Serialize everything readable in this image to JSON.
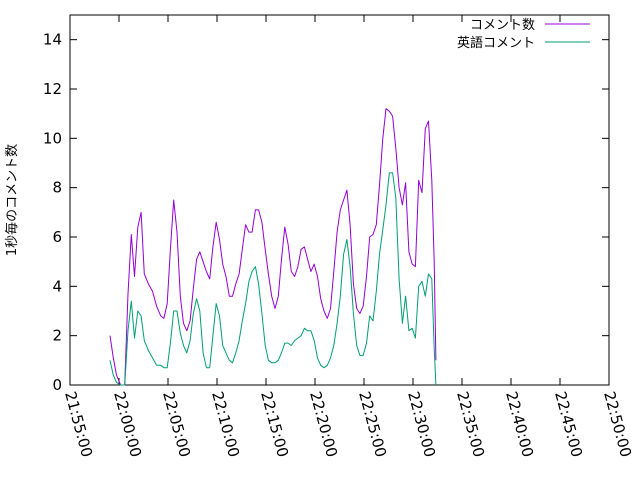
{
  "chart_data": {
    "type": "line",
    "title": "",
    "xlabel": "",
    "ylabel": "1秒毎のコメント数",
    "xlim": [
      "21:55:00",
      "22:50:00"
    ],
    "ylim": [
      0,
      15
    ],
    "x_tick_labels": [
      "21:55:00",
      "22:00:00",
      "22:05:00",
      "22:10:00",
      "22:15:00",
      "22:20:00",
      "22:25:00",
      "22:30:00",
      "22:35:00",
      "22:40:00",
      "22:45:00",
      "22:50:00"
    ],
    "y_tick_labels": [
      "0",
      "2",
      "4",
      "6",
      "8",
      "10",
      "12",
      "14"
    ],
    "y_ticks": [
      0,
      2,
      4,
      6,
      8,
      10,
      12,
      14
    ],
    "grid": false,
    "legend_position": "top-right",
    "series": [
      {
        "name": "コメント数",
        "color": "#9400d3",
        "points": [
          [
            "21:59:05",
            2.0
          ],
          [
            "21:59:25",
            1.1
          ],
          [
            "21:59:45",
            0.4
          ],
          [
            "22:00:10",
            0.0
          ],
          [
            "22:00:35",
            0.0
          ],
          [
            "22:00:55",
            3.7
          ],
          [
            "22:01:15",
            6.1
          ],
          [
            "22:01:35",
            4.4
          ],
          [
            "22:01:55",
            6.4
          ],
          [
            "22:02:15",
            7.0
          ],
          [
            "22:02:35",
            4.5
          ],
          [
            "22:03:00",
            4.1
          ],
          [
            "22:03:25",
            3.8
          ],
          [
            "22:03:50",
            3.2
          ],
          [
            "22:04:15",
            2.8
          ],
          [
            "22:04:35",
            2.7
          ],
          [
            "22:04:55",
            3.3
          ],
          [
            "22:05:15",
            5.5
          ],
          [
            "22:05:35",
            7.5
          ],
          [
            "22:05:55",
            6.2
          ],
          [
            "22:06:15",
            3.6
          ],
          [
            "22:06:35",
            2.5
          ],
          [
            "22:06:55",
            2.2
          ],
          [
            "22:07:15",
            2.6
          ],
          [
            "22:07:35",
            3.9
          ],
          [
            "22:07:55",
            5.1
          ],
          [
            "22:08:15",
            5.4
          ],
          [
            "22:08:35",
            5.0
          ],
          [
            "22:08:55",
            4.6
          ],
          [
            "22:09:15",
            4.3
          ],
          [
            "22:09:35",
            5.6
          ],
          [
            "22:09:55",
            6.6
          ],
          [
            "22:10:15",
            5.9
          ],
          [
            "22:10:35",
            4.9
          ],
          [
            "22:10:55",
            4.4
          ],
          [
            "22:11:15",
            3.6
          ],
          [
            "22:11:35",
            3.6
          ],
          [
            "22:11:55",
            4.1
          ],
          [
            "22:12:15",
            4.5
          ],
          [
            "22:12:35",
            5.5
          ],
          [
            "22:12:55",
            6.5
          ],
          [
            "22:13:15",
            6.2
          ],
          [
            "22:13:35",
            6.2
          ],
          [
            "22:13:55",
            7.1
          ],
          [
            "22:14:15",
            7.1
          ],
          [
            "22:14:35",
            6.6
          ],
          [
            "22:14:55",
            5.5
          ],
          [
            "22:15:15",
            4.5
          ],
          [
            "22:15:35",
            3.6
          ],
          [
            "22:15:55",
            3.1
          ],
          [
            "22:16:15",
            3.6
          ],
          [
            "22:16:35",
            5.1
          ],
          [
            "22:16:55",
            6.4
          ],
          [
            "22:17:15",
            5.7
          ],
          [
            "22:17:35",
            4.6
          ],
          [
            "22:17:55",
            4.4
          ],
          [
            "22:18:15",
            4.8
          ],
          [
            "22:18:35",
            5.5
          ],
          [
            "22:18:55",
            5.6
          ],
          [
            "22:19:15",
            5.1
          ],
          [
            "22:19:35",
            4.6
          ],
          [
            "22:19:55",
            4.9
          ],
          [
            "22:20:15",
            4.4
          ],
          [
            "22:20:35",
            3.5
          ],
          [
            "22:20:55",
            3.0
          ],
          [
            "22:21:15",
            2.7
          ],
          [
            "22:21:35",
            3.1
          ],
          [
            "22:21:55",
            4.6
          ],
          [
            "22:22:15",
            6.2
          ],
          [
            "22:22:35",
            7.1
          ],
          [
            "22:22:55",
            7.5
          ],
          [
            "22:23:15",
            7.9
          ],
          [
            "22:23:35",
            6.5
          ],
          [
            "22:23:55",
            4.1
          ],
          [
            "22:24:15",
            3.1
          ],
          [
            "22:24:35",
            2.9
          ],
          [
            "22:24:55",
            3.2
          ],
          [
            "22:25:15",
            4.4
          ],
          [
            "22:25:35",
            6.0
          ],
          [
            "22:25:55",
            6.1
          ],
          [
            "22:26:15",
            6.5
          ],
          [
            "22:26:35",
            8.1
          ],
          [
            "22:26:55",
            10.0
          ],
          [
            "22:27:15",
            11.2
          ],
          [
            "22:27:35",
            11.1
          ],
          [
            "22:27:55",
            10.9
          ],
          [
            "22:28:15",
            9.6
          ],
          [
            "22:28:35",
            8.0
          ],
          [
            "22:28:55",
            7.3
          ],
          [
            "22:29:15",
            8.2
          ],
          [
            "22:29:35",
            5.4
          ],
          [
            "22:29:55",
            4.9
          ],
          [
            "22:30:15",
            4.8
          ],
          [
            "22:30:35",
            8.3
          ],
          [
            "22:30:55",
            7.8
          ],
          [
            "22:31:15",
            10.4
          ],
          [
            "22:31:35",
            10.7
          ],
          [
            "22:31:55",
            8.3
          ],
          [
            "22:32:10",
            5.0
          ],
          [
            "22:32:20",
            1.0
          ]
        ]
      },
      {
        "name": "英語コメント",
        "color": "#009e73",
        "points": [
          [
            "21:59:05",
            1.0
          ],
          [
            "21:59:25",
            0.4
          ],
          [
            "21:59:45",
            0.1
          ],
          [
            "22:00:10",
            0.0
          ],
          [
            "22:00:35",
            0.0
          ],
          [
            "22:00:55",
            2.2
          ],
          [
            "22:01:15",
            3.4
          ],
          [
            "22:01:35",
            1.9
          ],
          [
            "22:01:55",
            3.0
          ],
          [
            "22:02:15",
            2.8
          ],
          [
            "22:02:35",
            1.8
          ],
          [
            "22:03:00",
            1.4
          ],
          [
            "22:03:25",
            1.1
          ],
          [
            "22:03:50",
            0.8
          ],
          [
            "22:04:15",
            0.8
          ],
          [
            "22:04:35",
            0.7
          ],
          [
            "22:04:55",
            0.7
          ],
          [
            "22:05:15",
            1.7
          ],
          [
            "22:05:35",
            3.0
          ],
          [
            "22:05:55",
            3.0
          ],
          [
            "22:06:15",
            2.1
          ],
          [
            "22:06:35",
            1.6
          ],
          [
            "22:06:55",
            1.3
          ],
          [
            "22:07:15",
            1.8
          ],
          [
            "22:07:35",
            2.9
          ],
          [
            "22:07:55",
            3.5
          ],
          [
            "22:08:15",
            3.0
          ],
          [
            "22:08:35",
            1.3
          ],
          [
            "22:08:55",
            0.7
          ],
          [
            "22:09:15",
            0.7
          ],
          [
            "22:09:35",
            2.0
          ],
          [
            "22:09:55",
            3.3
          ],
          [
            "22:10:15",
            2.8
          ],
          [
            "22:10:35",
            1.6
          ],
          [
            "22:10:55",
            1.3
          ],
          [
            "22:11:15",
            1.0
          ],
          [
            "22:11:35",
            0.9
          ],
          [
            "22:11:55",
            1.3
          ],
          [
            "22:12:15",
            1.8
          ],
          [
            "22:12:35",
            2.6
          ],
          [
            "22:12:55",
            3.3
          ],
          [
            "22:13:15",
            4.2
          ],
          [
            "22:13:35",
            4.6
          ],
          [
            "22:13:55",
            4.8
          ],
          [
            "22:14:15",
            4.1
          ],
          [
            "22:14:35",
            2.9
          ],
          [
            "22:14:55",
            1.6
          ],
          [
            "22:15:15",
            1.0
          ],
          [
            "22:15:35",
            0.9
          ],
          [
            "22:15:55",
            0.9
          ],
          [
            "22:16:15",
            1.0
          ],
          [
            "22:16:35",
            1.3
          ],
          [
            "22:16:55",
            1.7
          ],
          [
            "22:17:15",
            1.7
          ],
          [
            "22:17:35",
            1.6
          ],
          [
            "22:17:55",
            1.8
          ],
          [
            "22:18:15",
            1.9
          ],
          [
            "22:18:35",
            2.0
          ],
          [
            "22:18:55",
            2.3
          ],
          [
            "22:19:15",
            2.2
          ],
          [
            "22:19:35",
            2.2
          ],
          [
            "22:19:55",
            1.8
          ],
          [
            "22:20:15",
            1.1
          ],
          [
            "22:20:35",
            0.8
          ],
          [
            "22:20:55",
            0.7
          ],
          [
            "22:21:15",
            0.8
          ],
          [
            "22:21:35",
            1.1
          ],
          [
            "22:21:55",
            1.6
          ],
          [
            "22:22:15",
            2.5
          ],
          [
            "22:22:35",
            3.6
          ],
          [
            "22:22:55",
            5.3
          ],
          [
            "22:23:15",
            5.9
          ],
          [
            "22:23:35",
            4.8
          ],
          [
            "22:23:55",
            2.9
          ],
          [
            "22:24:15",
            1.6
          ],
          [
            "22:24:35",
            1.2
          ],
          [
            "22:24:55",
            1.2
          ],
          [
            "22:25:15",
            1.7
          ],
          [
            "22:25:35",
            2.8
          ],
          [
            "22:25:55",
            2.6
          ],
          [
            "22:26:15",
            3.8
          ],
          [
            "22:26:35",
            5.3
          ],
          [
            "22:26:55",
            6.3
          ],
          [
            "22:27:15",
            7.3
          ],
          [
            "22:27:35",
            8.6
          ],
          [
            "22:27:55",
            8.6
          ],
          [
            "22:28:15",
            7.6
          ],
          [
            "22:28:35",
            4.3
          ],
          [
            "22:28:55",
            2.5
          ],
          [
            "22:29:15",
            3.6
          ],
          [
            "22:29:35",
            2.2
          ],
          [
            "22:29:55",
            2.3
          ],
          [
            "22:30:15",
            1.9
          ],
          [
            "22:30:35",
            4.0
          ],
          [
            "22:30:55",
            4.2
          ],
          [
            "22:31:15",
            3.6
          ],
          [
            "22:31:35",
            4.5
          ],
          [
            "22:31:55",
            4.3
          ],
          [
            "22:32:10",
            1.5
          ],
          [
            "22:32:20",
            0.0
          ]
        ]
      }
    ]
  }
}
